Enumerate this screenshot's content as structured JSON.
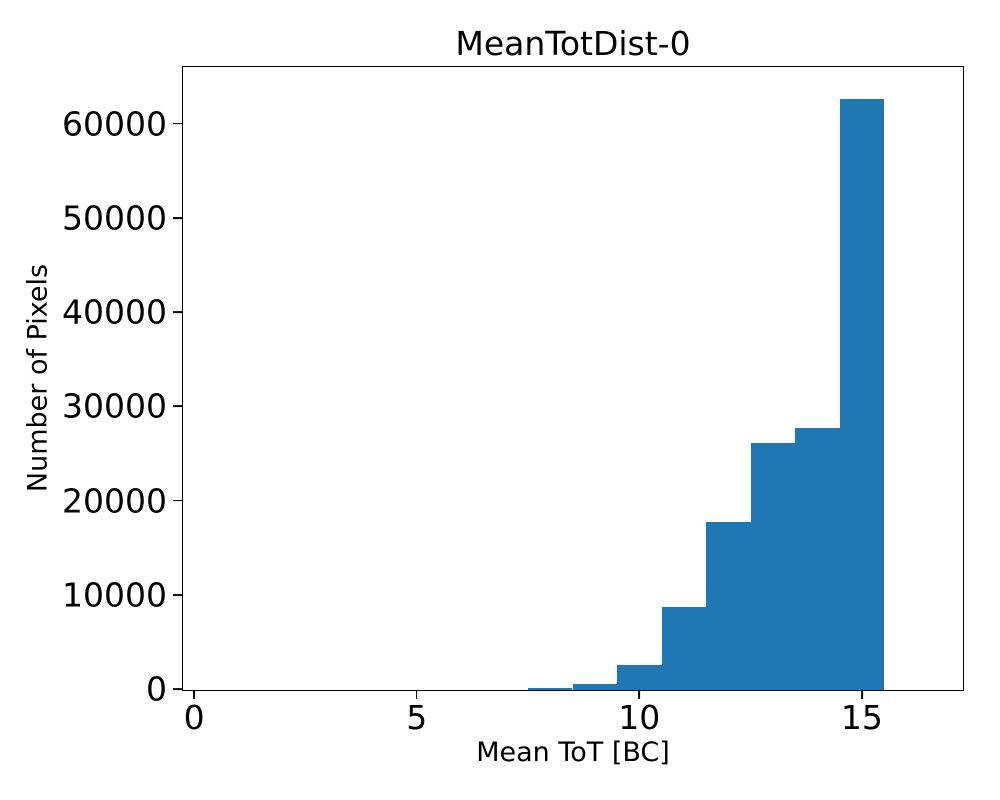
{
  "chart_data": {
    "type": "bar",
    "subtype": "histogram",
    "title": "MeanTotDist-0",
    "xlabel": "Mean ToT [BC]",
    "ylabel": "Number of Pixels",
    "bar_color": "#1f77b4",
    "bin_edges": [
      7.5,
      8.5,
      9.5,
      10.5,
      11.5,
      12.5,
      13.5,
      14.5,
      15.5
    ],
    "counts": [
      200,
      600,
      2700,
      8800,
      17800,
      26200,
      27800,
      62700
    ],
    "xticks": [
      0,
      5,
      10,
      15
    ],
    "yticks": [
      0,
      10000,
      20000,
      30000,
      40000,
      50000,
      60000
    ],
    "xlim": [
      -0.25,
      17.25
    ],
    "ylim": [
      0,
      66000
    ],
    "grid": false,
    "legend": null
  }
}
